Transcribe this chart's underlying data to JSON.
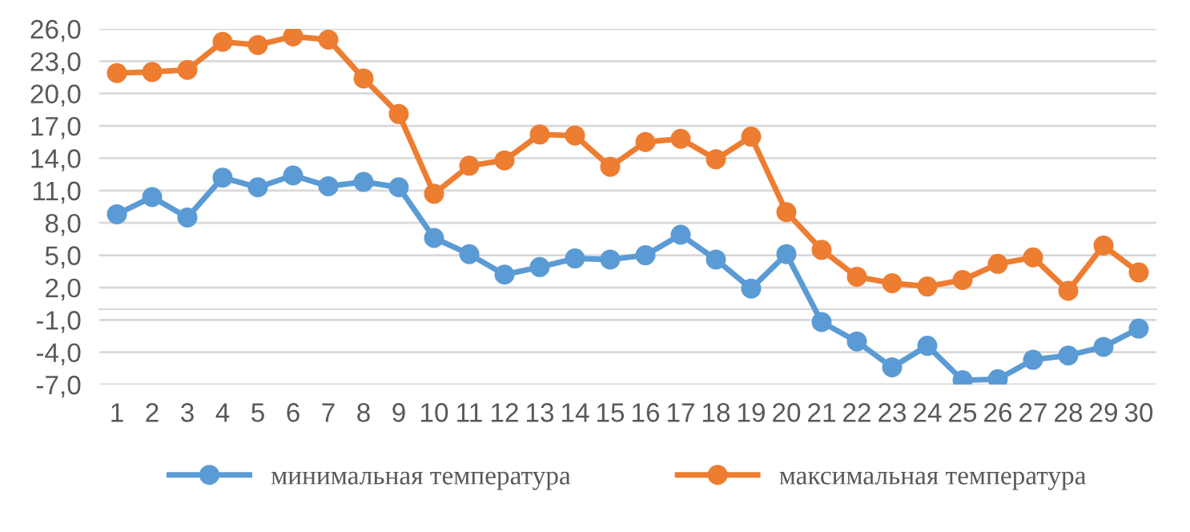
{
  "chart_data": {
    "type": "line",
    "categories": [
      "1",
      "2",
      "3",
      "4",
      "5",
      "6",
      "7",
      "8",
      "9",
      "10",
      "11",
      "12",
      "13",
      "14",
      "15",
      "16",
      "17",
      "18",
      "19",
      "20",
      "21",
      "22",
      "23",
      "24",
      "25",
      "26",
      "27",
      "28",
      "29",
      "30"
    ],
    "series": [
      {
        "name": "минимальная температура",
        "color": "#5b9bd5",
        "values": [
          8.8,
          10.4,
          8.5,
          12.2,
          11.3,
          12.4,
          11.4,
          11.8,
          11.3,
          6.6,
          5.1,
          3.2,
          3.9,
          4.7,
          4.6,
          5.0,
          6.9,
          4.6,
          1.9,
          5.1,
          -1.2,
          -3.0,
          -5.4,
          -3.4,
          -6.6,
          -6.5,
          -4.7,
          -4.3,
          -3.5,
          -1.8
        ]
      },
      {
        "name": "максимальная температура",
        "color": "#ed7d31",
        "values": [
          21.9,
          22.0,
          22.2,
          24.8,
          24.5,
          25.3,
          25.0,
          21.4,
          18.1,
          10.7,
          13.3,
          13.8,
          16.2,
          16.1,
          13.2,
          15.5,
          15.8,
          13.9,
          16.0,
          9.0,
          5.5,
          3.0,
          2.4,
          2.1,
          2.7,
          4.2,
          4.8,
          1.7,
          5.9,
          3.4
        ]
      }
    ],
    "ylim": [
      -7,
      26
    ],
    "yticks": [
      {
        "value": -7,
        "label": "-7,0"
      },
      {
        "value": -4,
        "label": "-4,0"
      },
      {
        "value": -1,
        "label": "-1,0"
      },
      {
        "value": 2,
        "label": "2,0"
      },
      {
        "value": 5,
        "label": "5,0"
      },
      {
        "value": 8,
        "label": "8,0"
      },
      {
        "value": 11,
        "label": "11,0"
      },
      {
        "value": 14,
        "label": "14,0"
      },
      {
        "value": 17,
        "label": "17,0"
      },
      {
        "value": 20,
        "label": "20,0"
      },
      {
        "value": 23,
        "label": "23,0"
      },
      {
        "value": 26,
        "label": "26,0"
      }
    ],
    "grid": "y",
    "legend": "bottom",
    "marker": "circle",
    "line_style": "solid"
  }
}
